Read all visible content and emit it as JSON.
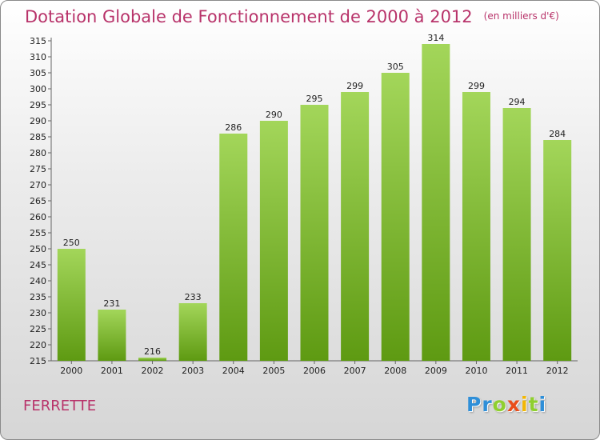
{
  "header": {
    "title": "Dotation Globale de Fonctionnement de 2000 à 2012",
    "unit": "(en milliers d'€)"
  },
  "footer": {
    "commune": "FERRETTE"
  },
  "logo": {
    "text": "Proxiti",
    "colors": [
      "#2f8fd8",
      "#2f8fd8",
      "#8fcf2f",
      "#e94e1b",
      "#f2b705",
      "#8fcf2f",
      "#2f8fd8"
    ]
  },
  "colors": {
    "bar_top": "#a3d65a",
    "bar_bottom": "#5e9a12",
    "title": "#b8336a"
  },
  "chart_data": {
    "type": "bar",
    "title": "Dotation Globale de Fonctionnement de 2000 à 2012",
    "subtitle": "(en milliers d'€)",
    "categories": [
      "2000",
      "2001",
      "2002",
      "2003",
      "2004",
      "2005",
      "2006",
      "2007",
      "2008",
      "2009",
      "2010",
      "2011",
      "2012"
    ],
    "values": [
      250,
      231,
      216,
      233,
      286,
      290,
      295,
      299,
      305,
      314,
      299,
      294,
      284
    ],
    "ylim": [
      215,
      315
    ],
    "yticks": [
      215,
      220,
      225,
      230,
      235,
      240,
      245,
      250,
      255,
      260,
      265,
      270,
      275,
      280,
      285,
      290,
      295,
      300,
      305,
      310,
      315
    ],
    "grid": false,
    "data_labels": true
  }
}
